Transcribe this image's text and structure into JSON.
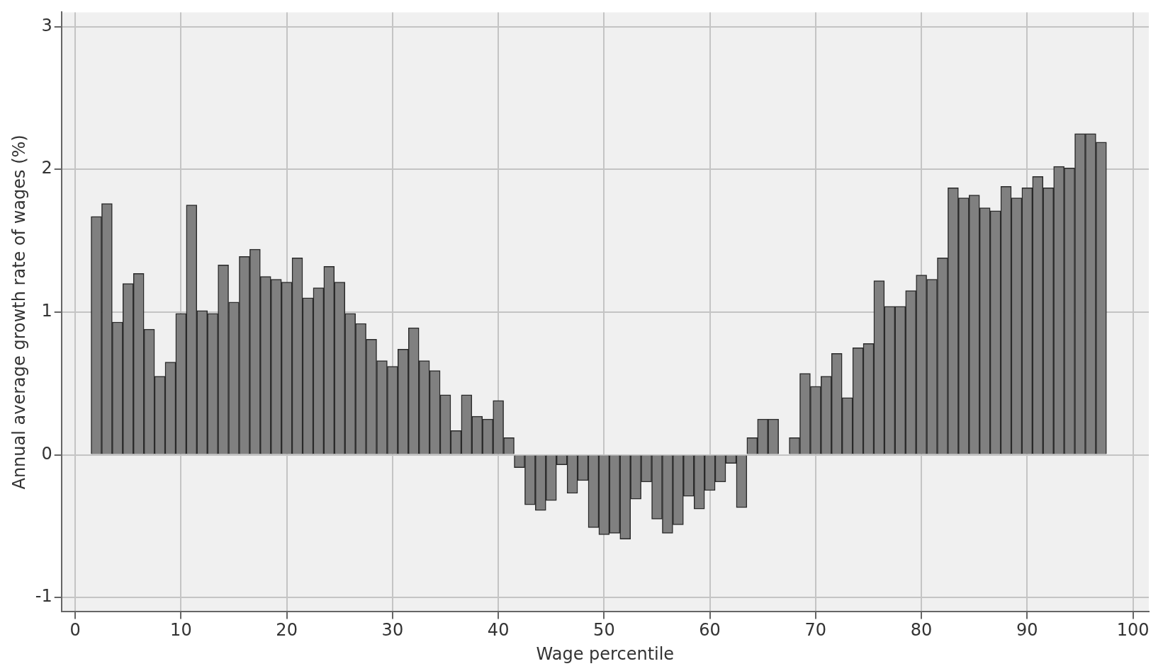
{
  "chart_data": {
    "type": "bar",
    "xlabel": "Wage percentile",
    "ylabel": "Annual average growth rate of wages (%)",
    "x": [
      2,
      3,
      4,
      5,
      6,
      7,
      8,
      9,
      10,
      11,
      12,
      13,
      14,
      15,
      16,
      17,
      18,
      19,
      20,
      21,
      22,
      23,
      24,
      25,
      26,
      27,
      28,
      29,
      30,
      31,
      32,
      33,
      34,
      35,
      36,
      37,
      38,
      39,
      40,
      41,
      42,
      43,
      44,
      45,
      46,
      47,
      48,
      49,
      50,
      51,
      52,
      53,
      54,
      55,
      56,
      57,
      58,
      59,
      60,
      61,
      62,
      63,
      64,
      65,
      66,
      67,
      68,
      69,
      70,
      71,
      72,
      73,
      74,
      75,
      76,
      77,
      78,
      79,
      80,
      81,
      82,
      83,
      84,
      85,
      86,
      87,
      88,
      89,
      90,
      91,
      92,
      93,
      94,
      95,
      96,
      97
    ],
    "values": [
      1.67,
      1.76,
      0.93,
      1.2,
      1.27,
      0.88,
      0.55,
      0.65,
      0.99,
      1.75,
      1.01,
      0.99,
      1.33,
      1.07,
      1.39,
      1.44,
      1.25,
      1.23,
      1.21,
      1.38,
      1.1,
      1.17,
      1.32,
      1.21,
      0.99,
      0.92,
      0.81,
      0.66,
      0.62,
      0.74,
      0.89,
      0.66,
      0.59,
      0.42,
      0.17,
      0.42,
      0.27,
      0.25,
      0.38,
      0.12,
      -0.09,
      -0.35,
      -0.39,
      -0.32,
      -0.07,
      -0.27,
      -0.18,
      -0.51,
      -0.56,
      -0.55,
      -0.59,
      -0.31,
      -0.19,
      -0.45,
      -0.55,
      -0.49,
      -0.29,
      -0.38,
      -0.25,
      -0.19,
      -0.06,
      -0.37,
      0.12,
      0.25,
      0.25,
      null,
      0.12,
      0.57,
      0.48,
      0.55,
      0.71,
      0.4,
      0.75,
      0.78,
      1.22,
      1.04,
      1.04,
      1.15,
      1.26,
      1.23,
      1.38,
      1.87,
      1.8,
      1.82,
      1.73,
      1.71,
      1.88,
      1.8,
      1.87,
      1.95,
      1.87,
      2.02,
      2.01,
      2.25,
      2.25,
      2.19
    ],
    "color": "#808080",
    "xlim": [
      -1.3,
      101.5
    ],
    "xticks": [
      0,
      10,
      20,
      30,
      40,
      50,
      60,
      70,
      80,
      90,
      100
    ],
    "ylim": [
      -1.1,
      3.1
    ],
    "yticks": [
      -1,
      0,
      1,
      2,
      3
    ],
    "grid": true,
    "legend": false
  }
}
